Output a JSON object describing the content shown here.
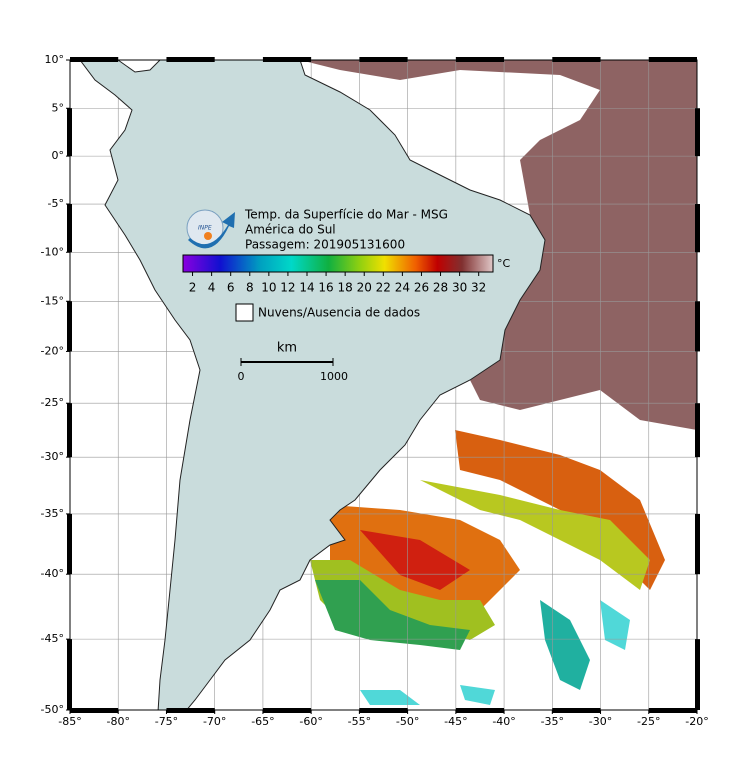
{
  "map": {
    "title_lines": [
      "Temp. da Superfície do Mar - MSG",
      "América do Sul",
      "Passagem: 201905131600"
    ],
    "logo_text": "INPE",
    "colorbar": {
      "unit": "°C",
      "range": [
        1,
        33.5
      ],
      "ticks": [
        2,
        4,
        6,
        8,
        10,
        12,
        14,
        16,
        18,
        20,
        22,
        24,
        26,
        28,
        30,
        32
      ]
    },
    "legend": "Nuvens/Ausencia de dados",
    "scale": {
      "unit": "km",
      "start": "0",
      "end": "1000"
    },
    "lon_range": [
      -85,
      -20
    ],
    "lat_range": [
      -50,
      10
    ],
    "lon_ticks": [
      {
        "value": -85,
        "label": "-85°"
      },
      {
        "value": -80,
        "label": "-80°"
      },
      {
        "value": -75,
        "label": "-75°"
      },
      {
        "value": -70,
        "label": "-70°"
      },
      {
        "value": -65,
        "label": "-65°"
      },
      {
        "value": -60,
        "label": "-60°"
      },
      {
        "value": -55,
        "label": "-55°"
      },
      {
        "value": -50,
        "label": "-50°"
      },
      {
        "value": -45,
        "label": "-45°"
      },
      {
        "value": -40,
        "label": "-40°"
      },
      {
        "value": -35,
        "label": "-35°"
      },
      {
        "value": -30,
        "label": "-30°"
      },
      {
        "value": -25,
        "label": "-25°"
      },
      {
        "value": -20,
        "label": "-20°"
      }
    ],
    "lat_ticks": [
      {
        "value": 10,
        "label": "10°"
      },
      {
        "value": 5,
        "label": "5°"
      },
      {
        "value": 0,
        "label": "0°"
      },
      {
        "value": -5,
        "label": "-5°"
      },
      {
        "value": -10,
        "label": "-10°"
      },
      {
        "value": -15,
        "label": "-15°"
      },
      {
        "value": -20,
        "label": "-20°"
      },
      {
        "value": -25,
        "label": "-25°"
      },
      {
        "value": -30,
        "label": "-30°"
      },
      {
        "value": -35,
        "label": "-35°"
      },
      {
        "value": -40,
        "label": "-40°"
      },
      {
        "value": -45,
        "label": "-45°"
      },
      {
        "value": -50,
        "label": "-50°"
      }
    ]
  }
}
